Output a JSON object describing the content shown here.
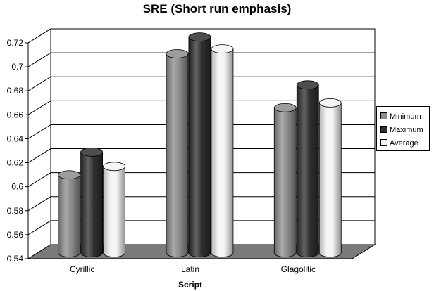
{
  "chart_data": {
    "type": "bar",
    "title": "SRE (Short run emphasis)",
    "xlabel": "Script",
    "ylabel": "",
    "categories": [
      "Cyrillic",
      "Latin",
      "Glagolitic"
    ],
    "series": [
      {
        "name": "Minimum",
        "values": [
          0.605,
          0.706,
          0.661
        ],
        "color": "#8c8c8c"
      },
      {
        "name": "Maximum",
        "values": [
          0.624,
          0.72,
          0.68
        ],
        "color": "#2f2f2f"
      },
      {
        "name": "Average",
        "values": [
          0.612,
          0.71,
          0.665
        ],
        "color": "#f4f4f4"
      }
    ],
    "ylim": [
      0.54,
      0.72
    ],
    "yticks": [
      "0.54",
      "0.56",
      "0.58",
      "0.6",
      "0.62",
      "0.64",
      "0.66",
      "0.68",
      "0.7",
      "0.72"
    ],
    "grid": true,
    "legend_position": "right",
    "floor_color": "#7a7a7a"
  }
}
